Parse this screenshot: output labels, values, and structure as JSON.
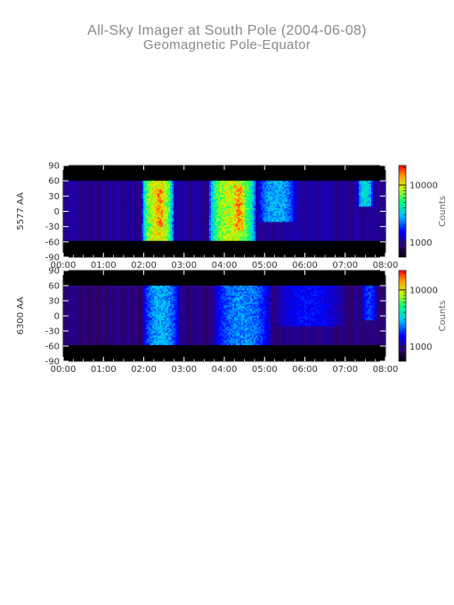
{
  "title": "All-Sky Imager at South Pole (2004-06-08)",
  "subtitle": "Geomagnetic Pole-Equator",
  "chart_data": [
    {
      "type": "heatmap",
      "ylabel": "5577 AA",
      "xlabel": "",
      "x_ticks": [
        "00:00",
        "01:00",
        "02:00",
        "03:00",
        "04:00",
        "05:00",
        "06:00",
        "07:00",
        "08:00"
      ],
      "y_ticks": [
        90,
        60,
        30,
        0,
        -30,
        -60,
        -90
      ],
      "xlim": [
        0,
        8
      ],
      "ylim": [
        -90,
        90
      ],
      "y_valid_range": [
        -57,
        60
      ],
      "colorbar": {
        "label": "Counts",
        "scale": "log",
        "range": [
          550,
          22000
        ],
        "ticks": [
          1000,
          10000
        ],
        "tick_labels": [
          "1000",
          "10000"
        ]
      },
      "base_counts": 1000,
      "events": [
        {
          "t0": 1.95,
          "t1": 2.75,
          "peak": 14000,
          "lat_lo": -57,
          "lat_hi": 60
        },
        {
          "t0": 2.25,
          "t1": 2.55,
          "peak": 20000,
          "lat_lo": -30,
          "lat_hi": 45
        },
        {
          "t0": 3.6,
          "t1": 4.8,
          "peak": 12000,
          "lat_lo": -57,
          "lat_hi": 60
        },
        {
          "t0": 4.15,
          "t1": 4.55,
          "peak": 19000,
          "lat_lo": -40,
          "lat_hi": 50
        },
        {
          "t0": 4.8,
          "t1": 5.8,
          "peak": 3500,
          "lat_lo": -20,
          "lat_hi": 60
        },
        {
          "t0": 7.3,
          "t1": 7.7,
          "peak": 4500,
          "lat_lo": 10,
          "lat_hi": 60
        }
      ]
    },
    {
      "type": "heatmap",
      "ylabel": "6300 AA",
      "xlabel": "",
      "x_ticks": [
        "00:00",
        "01:00",
        "02:00",
        "03:00",
        "04:00",
        "05:00",
        "06:00",
        "07:00",
        "08:00"
      ],
      "y_ticks": [
        90,
        60,
        30,
        0,
        -30,
        -60,
        -90
      ],
      "xlim": [
        0,
        8
      ],
      "ylim": [
        -90,
        90
      ],
      "y_valid_range": [
        -57,
        60
      ],
      "colorbar": {
        "label": "Counts",
        "scale": "log",
        "range": [
          550,
          22000
        ],
        "ticks": [
          1000,
          10000
        ],
        "tick_labels": [
          "1000",
          "10000"
        ]
      },
      "base_counts": 900,
      "events": [
        {
          "t0": 1.95,
          "t1": 2.9,
          "peak": 3500,
          "lat_lo": -57,
          "lat_hi": 60
        },
        {
          "t0": 3.7,
          "t1": 5.2,
          "peak": 3000,
          "lat_lo": -57,
          "lat_hi": 60
        },
        {
          "t0": 5.2,
          "t1": 7.0,
          "peak": 1800,
          "lat_lo": -20,
          "lat_hi": 60
        },
        {
          "t0": 7.4,
          "t1": 7.8,
          "peak": 2200,
          "lat_lo": -10,
          "lat_hi": 60
        }
      ]
    }
  ]
}
